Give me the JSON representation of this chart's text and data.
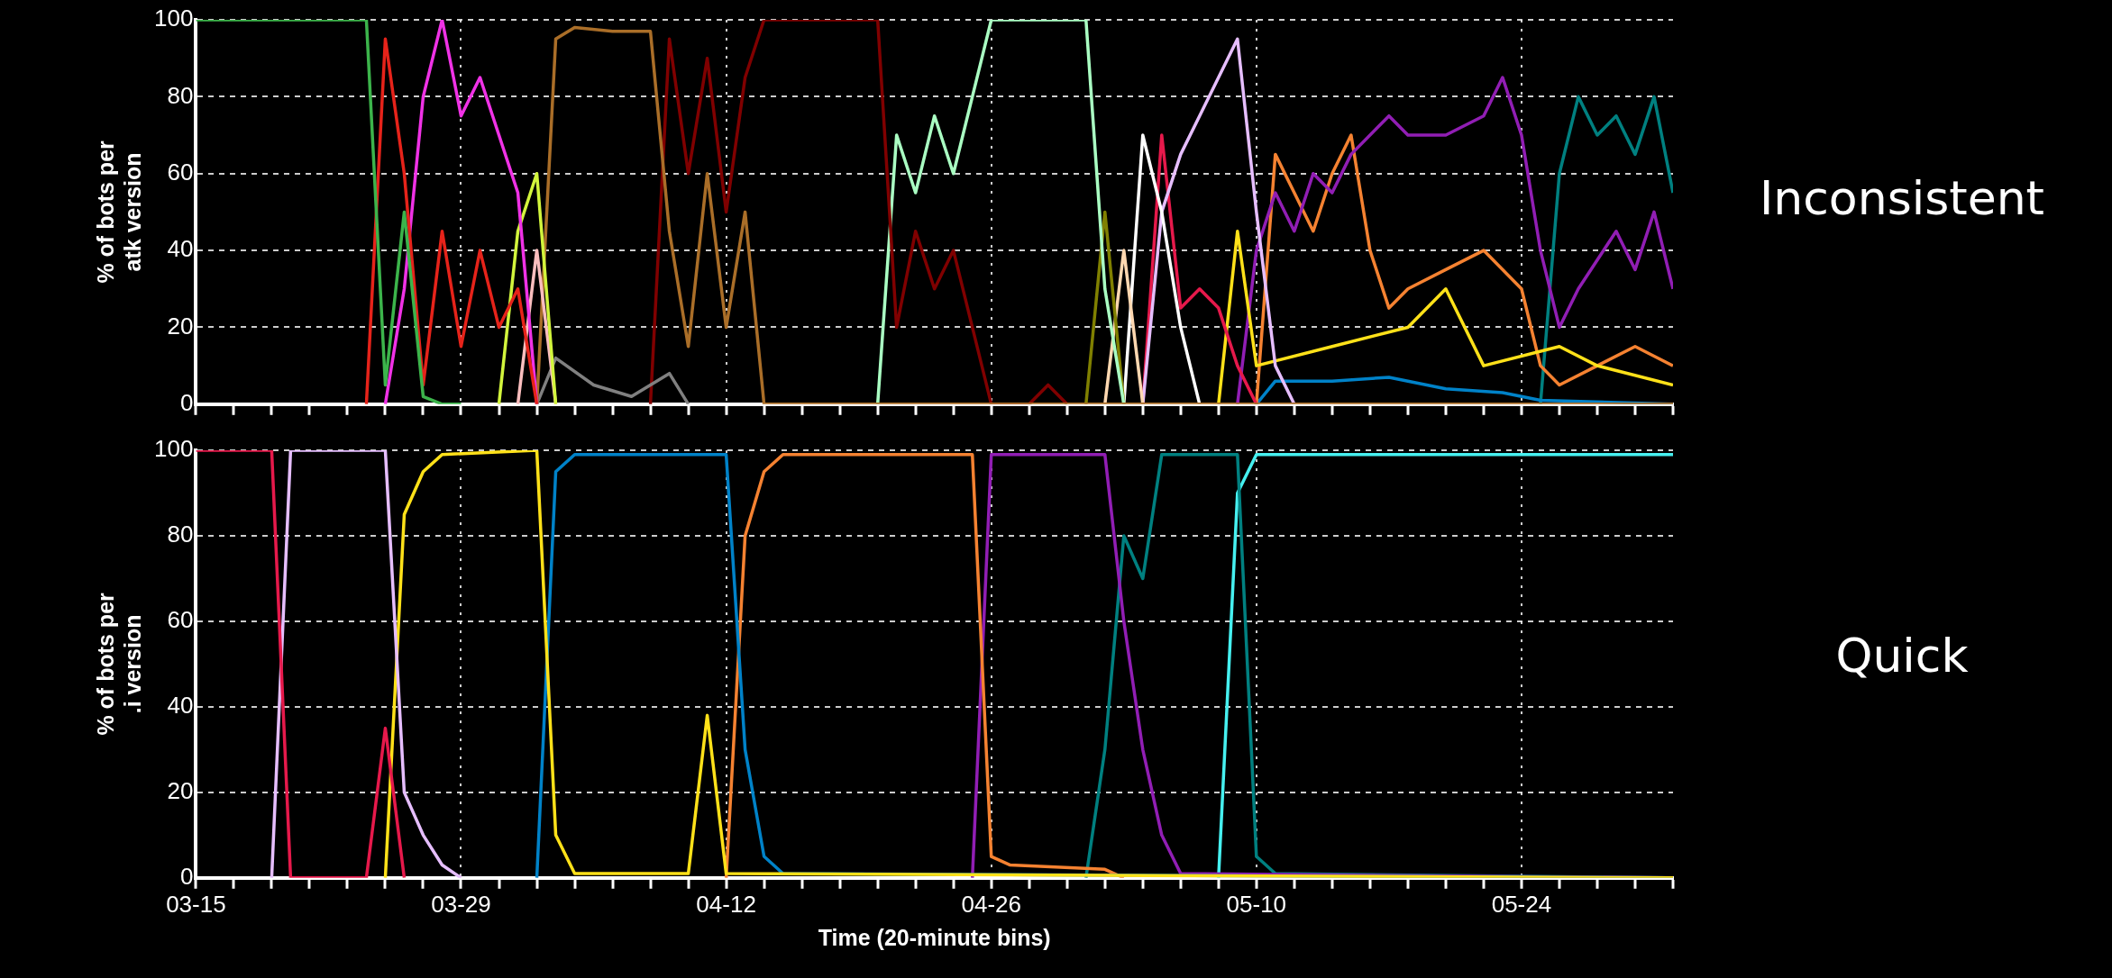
{
  "chart_data": [
    {
      "type": "line",
      "ylabel": "% of bots per\natk version",
      "annotations": [
        "Inconsistent"
      ],
      "grid": true,
      "legend": false,
      "tick_labels": "y",
      "marker": "none",
      "line_style": "solid",
      "xlim": [
        "--03-15",
        "--06-01"
      ],
      "ylim": [
        0,
        100
      ],
      "yticks": [
        0,
        20,
        40,
        60,
        80,
        100
      ],
      "xticks": [
        {
          "value": "--03-15",
          "label": null
        },
        {
          "value": "--03-17",
          "label": null
        },
        {
          "value": "--03-19",
          "label": null
        },
        {
          "value": "--03-21",
          "label": null
        },
        {
          "value": "--03-23",
          "label": null
        },
        {
          "value": "--03-25",
          "label": null
        },
        {
          "value": "--03-27",
          "label": null
        },
        {
          "value": "--03-29",
          "label": null
        },
        {
          "value": "--03-31",
          "label": null
        },
        {
          "value": "--04-02",
          "label": null
        },
        {
          "value": "--04-04",
          "label": null
        },
        {
          "value": "--04-06",
          "label": null
        },
        {
          "value": "--04-08",
          "label": null
        },
        {
          "value": "--04-10",
          "label": null
        },
        {
          "value": "--04-12",
          "label": null
        },
        {
          "value": "--04-14",
          "label": null
        },
        {
          "value": "--04-16",
          "label": null
        },
        {
          "value": "--04-18",
          "label": null
        },
        {
          "value": "--04-20",
          "label": null
        },
        {
          "value": "--04-22",
          "label": null
        },
        {
          "value": "--04-24",
          "label": null
        },
        {
          "value": "--04-26",
          "label": null
        },
        {
          "value": "--04-28",
          "label": null
        },
        {
          "value": "--04-30",
          "label": null
        },
        {
          "value": "--05-02",
          "label": null
        },
        {
          "value": "--05-04",
          "label": null
        },
        {
          "value": "--05-06",
          "label": null
        },
        {
          "value": "--05-08",
          "label": null
        },
        {
          "value": "--05-10",
          "label": null
        },
        {
          "value": "--05-12",
          "label": null
        },
        {
          "value": "--05-14",
          "label": null
        },
        {
          "value": "--05-16",
          "label": null
        },
        {
          "value": "--05-18",
          "label": null
        },
        {
          "value": "--05-20",
          "label": null
        },
        {
          "value": "--05-22",
          "label": null
        },
        {
          "value": "--05-24",
          "label": null
        },
        {
          "value": "--05-26",
          "label": null
        },
        {
          "value": "--05-28",
          "label": null
        },
        {
          "value": "--05-30",
          "label": null
        },
        {
          "value": "--06-01",
          "label": null
        }
      ],
      "series": [
        {
          "color": "#3cb44b",
          "x": [
            "--03-15",
            "--03-24",
            "--03-25",
            "--03-26",
            "--03-27",
            "--03-28",
            "--03-29"
          ],
          "values": [
            100,
            100,
            5,
            50,
            2,
            0,
            0
          ]
        },
        {
          "color": "#e6231a",
          "x": [
            "--03-24",
            "--03-25",
            "--03-26",
            "--03-27",
            "--03-28",
            "--03-29",
            "--03-30",
            "--03-31",
            "--04-01",
            "--04-02"
          ],
          "values": [
            0,
            95,
            60,
            5,
            45,
            15,
            40,
            20,
            30,
            0
          ]
        },
        {
          "color": "#f032e6",
          "x": [
            "--03-25",
            "--03-26",
            "--03-27",
            "--03-28",
            "--03-29",
            "--03-30",
            "--03-31",
            "--04-01",
            "--04-02"
          ],
          "values": [
            0,
            30,
            80,
            100,
            75,
            85,
            70,
            55,
            0
          ]
        },
        {
          "color": "#d2f53c",
          "x": [
            "--03-31",
            "--04-01",
            "--04-02",
            "--04-03"
          ],
          "values": [
            0,
            45,
            60,
            0
          ]
        },
        {
          "color": "#fabebe",
          "x": [
            "--04-01",
            "--04-02",
            "--04-03"
          ],
          "values": [
            0,
            40,
            0
          ]
        },
        {
          "color": "#aa6e28",
          "x": [
            "--04-02",
            "--04-03",
            "--04-04",
            "--04-06",
            "--04-08",
            "--04-09",
            "--04-10",
            "--04-11",
            "--04-12",
            "--04-13",
            "--04-14",
            "--06-01"
          ],
          "values": [
            0,
            95,
            98,
            97,
            97,
            45,
            15,
            60,
            20,
            50,
            0,
            0
          ]
        },
        {
          "color": "#808080",
          "x": [
            "--04-02",
            "--04-03",
            "--04-05",
            "--04-07",
            "--04-09",
            "--04-10"
          ],
          "values": [
            0,
            12,
            5,
            2,
            8,
            0
          ]
        },
        {
          "color": "#800000",
          "x": [
            "--04-08",
            "--04-09",
            "--04-10",
            "--04-11",
            "--04-12",
            "--04-13",
            "--04-14",
            "--04-20",
            "--04-21",
            "--04-22",
            "--04-23",
            "--04-24",
            "--04-25",
            "--04-26",
            "--04-28",
            "--04-29",
            "--04-30"
          ],
          "values": [
            0,
            95,
            60,
            90,
            50,
            85,
            100,
            100,
            20,
            45,
            30,
            40,
            20,
            0,
            0,
            5,
            0
          ]
        },
        {
          "color": "#aaffc3",
          "x": [
            "--04-20",
            "--04-21",
            "--04-22",
            "--04-23",
            "--04-24",
            "--04-25",
            "--04-26",
            "--05-01",
            "--05-02",
            "--05-03"
          ],
          "values": [
            0,
            70,
            55,
            75,
            60,
            80,
            100,
            100,
            30,
            0
          ]
        },
        {
          "color": "#808000",
          "x": [
            "--05-01",
            "--05-02",
            "--05-03"
          ],
          "values": [
            0,
            50,
            0
          ]
        },
        {
          "color": "#ffd8b1",
          "x": [
            "--05-02",
            "--05-03",
            "--05-04"
          ],
          "values": [
            0,
            40,
            0
          ]
        },
        {
          "color": "#ffffff",
          "x": [
            "--05-03",
            "--05-04",
            "--05-05",
            "--05-06",
            "--05-07"
          ],
          "values": [
            0,
            70,
            50,
            20,
            0
          ]
        },
        {
          "color": "#e6beff",
          "x": [
            "--05-04",
            "--05-05",
            "--05-06",
            "--05-07",
            "--05-08",
            "--05-09",
            "--05-10",
            "--05-11",
            "--05-12"
          ],
          "values": [
            0,
            50,
            65,
            75,
            85,
            95,
            50,
            10,
            0
          ]
        },
        {
          "color": "#e6194b",
          "x": [
            "--05-04",
            "--05-05",
            "--05-06",
            "--05-07",
            "--05-08",
            "--05-09",
            "--05-10"
          ],
          "values": [
            0,
            70,
            25,
            30,
            25,
            10,
            0
          ]
        },
        {
          "color": "#ffe119",
          "x": [
            "--05-08",
            "--05-09",
            "--05-10",
            "--05-14",
            "--05-18",
            "--05-20",
            "--05-22",
            "--05-26",
            "--05-28",
            "--06-01"
          ],
          "values": [
            0,
            45,
            10,
            15,
            20,
            30,
            10,
            15,
            10,
            5
          ]
        },
        {
          "color": "#911eb4",
          "x": [
            "--05-09",
            "--05-10",
            "--05-11",
            "--05-12",
            "--05-13",
            "--05-14",
            "--05-15",
            "--05-17",
            "--05-18",
            "--05-20",
            "--05-22",
            "--05-23",
            "--05-24",
            "--05-25",
            "--05-26",
            "--05-27",
            "--05-29",
            "--05-30",
            "--05-31",
            "--06-01"
          ],
          "values": [
            0,
            40,
            55,
            45,
            60,
            55,
            65,
            75,
            70,
            70,
            75,
            85,
            70,
            40,
            20,
            30,
            45,
            35,
            50,
            30
          ]
        },
        {
          "color": "#f58231",
          "x": [
            "--05-10",
            "--05-11",
            "--05-12",
            "--05-13",
            "--05-14",
            "--05-15",
            "--05-16",
            "--05-17",
            "--05-18",
            "--05-20",
            "--05-22",
            "--05-24",
            "--05-25",
            "--05-26",
            "--05-28",
            "--05-30",
            "--06-01"
          ],
          "values": [
            0,
            65,
            55,
            45,
            60,
            70,
            40,
            25,
            30,
            35,
            40,
            30,
            10,
            5,
            10,
            15,
            10
          ]
        },
        {
          "color": "#0082c8",
          "x": [
            "--05-10",
            "--05-11",
            "--05-14",
            "--05-17",
            "--05-20",
            "--05-23",
            "--05-25",
            "--06-01"
          ],
          "values": [
            0,
            6,
            6,
            7,
            4,
            3,
            1,
            0
          ]
        },
        {
          "color": "#008080",
          "x": [
            "--05-25",
            "--05-26",
            "--05-27",
            "--05-28",
            "--05-29",
            "--05-30",
            "--05-31",
            "--06-01"
          ],
          "values": [
            0,
            60,
            80,
            70,
            75,
            65,
            80,
            55
          ]
        }
      ]
    },
    {
      "type": "line",
      "ylabel": "% of bots per\n.i version",
      "xlabel": "Time (20-minute bins)",
      "annotations": [
        "Quick"
      ],
      "grid": true,
      "legend": false,
      "marker": "none",
      "line_style": "solid",
      "xlim": [
        "--03-15",
        "--06-01"
      ],
      "ylim": [
        0,
        100
      ],
      "yticks": [
        0,
        20,
        40,
        60,
        80,
        100
      ],
      "xticks": [
        {
          "value": "--03-15",
          "label": "03-15"
        },
        {
          "value": "--03-17",
          "label": null
        },
        {
          "value": "--03-19",
          "label": null
        },
        {
          "value": "--03-21",
          "label": null
        },
        {
          "value": "--03-23",
          "label": null
        },
        {
          "value": "--03-25",
          "label": null
        },
        {
          "value": "--03-27",
          "label": null
        },
        {
          "value": "--03-29",
          "label": "03-29"
        },
        {
          "value": "--03-31",
          "label": null
        },
        {
          "value": "--04-02",
          "label": null
        },
        {
          "value": "--04-04",
          "label": null
        },
        {
          "value": "--04-06",
          "label": null
        },
        {
          "value": "--04-08",
          "label": null
        },
        {
          "value": "--04-10",
          "label": null
        },
        {
          "value": "--04-12",
          "label": "04-12"
        },
        {
          "value": "--04-14",
          "label": null
        },
        {
          "value": "--04-16",
          "label": null
        },
        {
          "value": "--04-18",
          "label": null
        },
        {
          "value": "--04-20",
          "label": null
        },
        {
          "value": "--04-22",
          "label": null
        },
        {
          "value": "--04-24",
          "label": null
        },
        {
          "value": "--04-26",
          "label": "04-26"
        },
        {
          "value": "--04-28",
          "label": null
        },
        {
          "value": "--04-30",
          "label": null
        },
        {
          "value": "--05-02",
          "label": null
        },
        {
          "value": "--05-04",
          "label": null
        },
        {
          "value": "--05-06",
          "label": null
        },
        {
          "value": "--05-08",
          "label": null
        },
        {
          "value": "--05-10",
          "label": "05-10"
        },
        {
          "value": "--05-12",
          "label": null
        },
        {
          "value": "--05-14",
          "label": null
        },
        {
          "value": "--05-16",
          "label": null
        },
        {
          "value": "--05-18",
          "label": null
        },
        {
          "value": "--05-20",
          "label": null
        },
        {
          "value": "--05-22",
          "label": null
        },
        {
          "value": "--05-24",
          "label": "05-24"
        },
        {
          "value": "--05-26",
          "label": null
        },
        {
          "value": "--05-28",
          "label": null
        },
        {
          "value": "--05-30",
          "label": null
        },
        {
          "value": "--06-01",
          "label": null
        }
      ],
      "series": [
        {
          "color": "#e6194b",
          "x": [
            "--03-15",
            "--03-19",
            "--03-20",
            "--03-24",
            "--03-25",
            "--03-26"
          ],
          "values": [
            100,
            100,
            0,
            0,
            35,
            0
          ]
        },
        {
          "color": "#e6beff",
          "x": [
            "--03-19",
            "--03-20",
            "--03-25",
            "--03-26",
            "--03-27",
            "--03-28",
            "--03-29"
          ],
          "values": [
            0,
            100,
            100,
            20,
            10,
            3,
            0
          ]
        },
        {
          "color": "#ffe119",
          "x": [
            "--03-25",
            "--03-26",
            "--03-27",
            "--03-28",
            "--04-02",
            "--04-03",
            "--04-04",
            "--04-10",
            "--04-11",
            "--04-12",
            "--06-01"
          ],
          "values": [
            0,
            85,
            95,
            99,
            100,
            10,
            1,
            1,
            38,
            1,
            0
          ]
        },
        {
          "color": "#0082c8",
          "x": [
            "--04-02",
            "--04-03",
            "--04-04",
            "--04-11",
            "--04-12",
            "--04-13",
            "--04-14",
            "--04-15",
            "--06-01"
          ],
          "values": [
            0,
            95,
            99,
            99,
            99,
            30,
            5,
            1,
            0
          ]
        },
        {
          "color": "#f58231",
          "x": [
            "--04-12",
            "--04-13",
            "--04-14",
            "--04-15",
            "--04-25",
            "--04-26",
            "--04-27",
            "--05-02",
            "--05-03"
          ],
          "values": [
            0,
            80,
            95,
            99,
            99,
            5,
            3,
            2,
            0
          ]
        },
        {
          "color": "#911eb4",
          "x": [
            "--04-25",
            "--04-26",
            "--05-02",
            "--05-03",
            "--05-04",
            "--05-05",
            "--05-06",
            "--06-01"
          ],
          "values": [
            0,
            99,
            99,
            60,
            30,
            10,
            1,
            0
          ]
        },
        {
          "color": "#008080",
          "x": [
            "--05-01",
            "--05-02",
            "--05-03",
            "--05-04",
            "--05-05",
            "--05-09",
            "--05-10",
            "--05-11",
            "--06-01"
          ],
          "values": [
            0,
            30,
            80,
            70,
            99,
            99,
            5,
            1,
            0
          ]
        },
        {
          "color": "#46f0f0",
          "x": [
            "--05-08",
            "--05-09",
            "--05-10",
            "--06-01"
          ],
          "values": [
            0,
            90,
            99,
            99
          ]
        }
      ]
    }
  ]
}
